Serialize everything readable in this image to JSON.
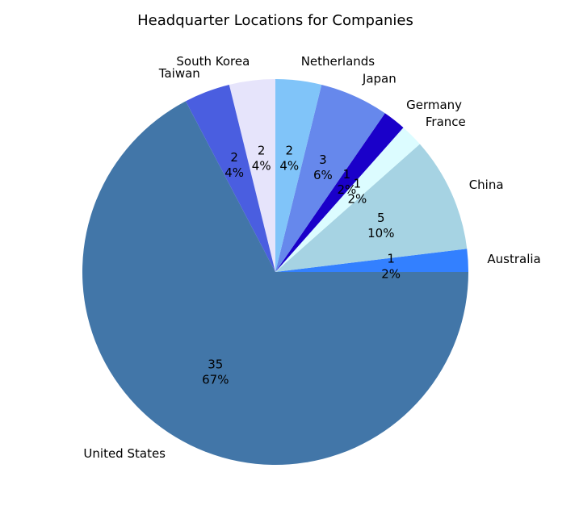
{
  "chart_data": {
    "type": "pie",
    "title": "Headquarter Locations for Companies",
    "start_angle_deg": 0,
    "direction": "counterclockwise",
    "slices": [
      {
        "label": "Australia",
        "value": 1,
        "percent": "2%",
        "color": "#3380ff"
      },
      {
        "label": "China",
        "value": 5,
        "percent": "10%",
        "color": "#a6d3e3"
      },
      {
        "label": "France",
        "value": 1,
        "percent": "2%",
        "color": "#dcfcff"
      },
      {
        "label": "Germany",
        "value": 1,
        "percent": "2%",
        "color": "#1a00c9"
      },
      {
        "label": "Japan",
        "value": 3,
        "percent": "6%",
        "color": "#6688ec"
      },
      {
        "label": "Netherlands",
        "value": 2,
        "percent": "4%",
        "color": "#80c4f9"
      },
      {
        "label": "South Korea",
        "value": 2,
        "percent": "4%",
        "color": "#e6e4fb"
      },
      {
        "label": "Taiwan",
        "value": 2,
        "percent": "4%",
        "color": "#4a5ee0"
      },
      {
        "label": "United States",
        "value": 35,
        "percent": "67%",
        "color": "#4276a8"
      }
    ]
  }
}
